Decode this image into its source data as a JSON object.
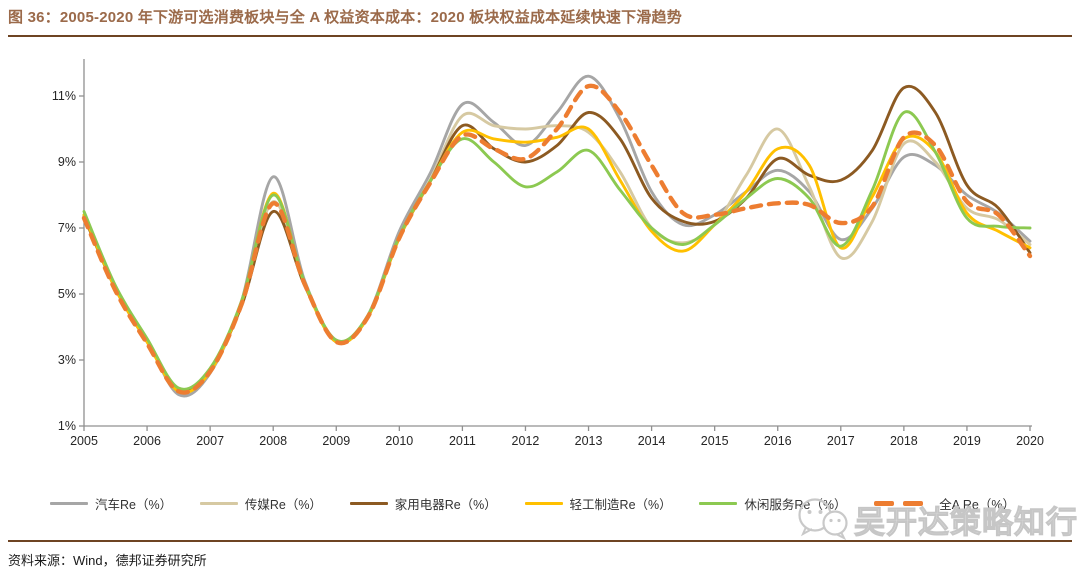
{
  "figure": {
    "title": "图 36：2005-2020 年下游可选消费板块与全 A 权益资本成本：2020 板块权益成本延续快速下滑趋势",
    "source": "资料来源：Wind，德邦证券研究所",
    "watermark": "吴开达策略知行",
    "title_color": "#9B6A4A",
    "rule_color": "#6E4423"
  },
  "chart_data": {
    "type": "line",
    "title": "",
    "xlabel": "",
    "ylabel": "",
    "grid": false,
    "legend_position": "bottom",
    "x": [
      2005,
      2005.5,
      2006,
      2006.5,
      2007,
      2007.5,
      2008,
      2008.5,
      2009,
      2009.5,
      2010,
      2010.5,
      2011,
      2011.5,
      2012,
      2012.5,
      2013,
      2013.5,
      2014,
      2014.5,
      2015,
      2015.5,
      2016,
      2016.5,
      2017,
      2017.5,
      2018,
      2018.5,
      2019,
      2019.5,
      2020
    ],
    "xticks": [
      2005,
      2006,
      2007,
      2008,
      2009,
      2010,
      2011,
      2012,
      2013,
      2014,
      2015,
      2016,
      2017,
      2018,
      2019,
      2020
    ],
    "yticks": [
      1,
      3,
      5,
      7,
      9,
      11
    ],
    "ytick_suffix": "%",
    "ylim": [
      1,
      12.2
    ],
    "xlim": [
      2005,
      2020
    ],
    "axis_color": "#909090",
    "series": [
      {
        "name": "汽车Re（%）",
        "color": "#A6A6A6",
        "dashed": false,
        "values": [
          7.4,
          5.2,
          3.6,
          1.95,
          2.6,
          4.8,
          8.55,
          5.4,
          3.6,
          4.35,
          6.9,
          8.7,
          10.75,
          10.2,
          9.5,
          10.5,
          11.6,
          10.3,
          8.1,
          7.1,
          7.4,
          8.1,
          8.75,
          8.1,
          6.65,
          7.6,
          9.15,
          8.9,
          8.0,
          7.45,
          6.6
        ]
      },
      {
        "name": "传媒Re（%）",
        "color": "#D6C9A2",
        "dashed": false,
        "values": [
          7.35,
          5.15,
          3.55,
          2.05,
          2.65,
          4.7,
          7.8,
          5.3,
          3.55,
          4.3,
          6.75,
          8.5,
          10.4,
          10.1,
          10.0,
          10.1,
          9.9,
          8.7,
          7.0,
          6.55,
          7.1,
          8.6,
          10.0,
          8.25,
          6.1,
          7.2,
          9.55,
          9.0,
          7.6,
          7.25,
          6.5
        ]
      },
      {
        "name": "家用电器Re（%）",
        "color": "#8C5A22",
        "dashed": false,
        "values": [
          7.35,
          5.15,
          3.55,
          2.1,
          2.7,
          4.65,
          7.5,
          5.25,
          3.55,
          4.3,
          6.7,
          8.45,
          10.1,
          9.4,
          9.0,
          9.5,
          10.5,
          9.7,
          7.9,
          7.2,
          7.2,
          7.9,
          9.1,
          8.6,
          8.45,
          9.35,
          11.25,
          10.5,
          8.3,
          7.6,
          6.25
        ]
      },
      {
        "name": "轻工制造Re（%）",
        "color": "#FFC000",
        "dashed": false,
        "values": [
          7.4,
          5.15,
          3.55,
          2.05,
          2.65,
          4.75,
          8.05,
          5.3,
          3.55,
          4.3,
          6.7,
          8.45,
          9.9,
          9.7,
          9.6,
          9.75,
          10.0,
          8.45,
          6.9,
          6.3,
          7.1,
          8.1,
          9.4,
          8.9,
          6.4,
          7.95,
          9.7,
          9.3,
          7.45,
          6.9,
          6.4
        ]
      },
      {
        "name": "休闲服务Re（%）",
        "color": "#8CC951",
        "dashed": false,
        "values": [
          7.5,
          5.25,
          3.65,
          2.15,
          2.75,
          4.8,
          8.0,
          5.35,
          3.6,
          4.35,
          6.75,
          8.45,
          9.7,
          9.0,
          8.25,
          8.7,
          9.35,
          8.15,
          7.0,
          6.5,
          7.1,
          7.9,
          8.5,
          7.9,
          6.45,
          8.15,
          10.5,
          9.3,
          7.3,
          7.05,
          7.0
        ]
      },
      {
        "name": "全A Re（%）",
        "color": "#ED7D31",
        "dashed": true,
        "values": [
          7.3,
          5.1,
          3.5,
          2.05,
          2.65,
          4.7,
          7.75,
          5.3,
          3.55,
          4.3,
          6.7,
          8.4,
          9.8,
          9.4,
          9.1,
          10.0,
          11.3,
          10.5,
          8.9,
          7.45,
          7.4,
          7.6,
          7.75,
          7.7,
          7.15,
          7.65,
          9.75,
          9.5,
          7.8,
          7.4,
          6.15
        ]
      }
    ]
  }
}
